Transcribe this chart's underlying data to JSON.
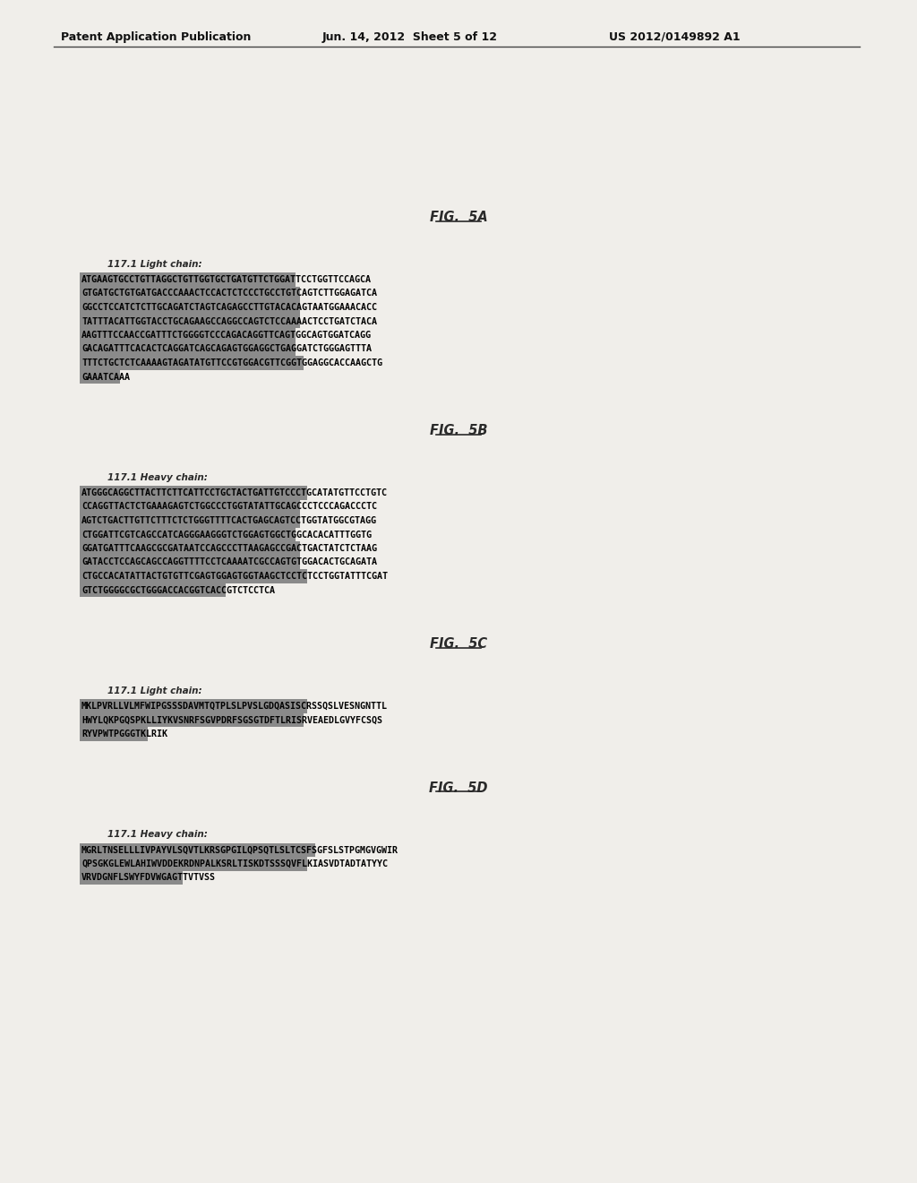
{
  "bg_color": "#f0eeea",
  "page_bg": "#f0eeea",
  "header_left": "Patent Application Publication",
  "header_center": "Jun. 14, 2012  Sheet 5 of 12",
  "header_right": "US 2012/0149892 A1",
  "fig5a_title": "FIG.  5A",
  "fig5a_label": "117.1 Light chain:",
  "fig5a_seq": [
    "ATGAAGTGCCTGTTAGGCTGTTGGTGCTGATGTTCTGGATTCCTGGTTCCAGCA",
    "GTGATGCTGTGATGACCCAAACTCCACTCTCCCTGCCTGTCAGTCTTGGAGATCA",
    "GGCCTCCATCTCTTGCAGATCTAGTCAGAGCCTTGTACACAGTAATGGAAACACC",
    "TATTTACATTGGTACCTGCAGAAGCCAGGCCAGTCTCCAAAACTCCTGATCTACA",
    "AAGTTTCCAACCGATTTCTGGGGTCCCAGACAGGTTCAGTGGCAGTGGATCAGG",
    "GACAGATTTCACACTCAGGATCAGCAGAGTGGAGGCTGAGGATCTGGGAGTTTA",
    "TTTCTGCTCTCAAAAGTAGATATGTTCCGTGGACGTTCGGTGGAGGCACCAAGCTG",
    "GAAATCAAA"
  ],
  "fig5b_title": "FIG.  5B",
  "fig5b_label": "117.1 Heavy chain:",
  "fig5b_seq": [
    "ATGGGCAGGCTTACTTCTTCATTCCTGCTACTGATTGTCCCTGCATATGTTCCTGTC",
    "CCAGGTTACTCTGAAAGAGTCTGGCCCTGGTATATTGCAGCCCTCCCAGACCCTC",
    "AGTCTGACTTGTTCTTTCTCTGGGTTTTCACTGAGCAGTCCTGGTATGGCGTAGG",
    "CTGGATTCGTCAGCCATCAGGGAAGGGTCTGGAGTGGCTGGCACACATTTGGTG",
    "GGATGATTTCAAGCGCGATAATCCAGCCCTTAAGAGCCGACTGACTATCTCTAAG",
    "GATACCTCCAGCAGCCAGGTTTTCCTCAAAATCGCCAGTGTGGACACTGCAGATA",
    "CTGCCACATATTACTGTGTTCGAGTGGAGTGGTAAGCTCCTCTCCTGGTATTTCGAT",
    "GTCTGGGGCGCTGGGACCACGGTCACCGTCTCCTCA"
  ],
  "fig5c_title": "FIG.  5C",
  "fig5c_label": "117.1 Light chain:",
  "fig5c_seq": [
    "MKLPVRLLVLMFWIPGSSSDAVMTQTPLSLPVSLGDQASISCRSSQSLVESNGNTTL",
    "HWYLQKPGQSPKLLIYKVSNRFSGVPDRFSGSGTDFTLRISRVEAEDLGVYFCSQS",
    "RYVPWTPGGGTKLRIK"
  ],
  "fig5d_title": "FIG.  5D",
  "fig5d_label": "117.1 Heavy chain:",
  "fig5d_seq": [
    "MGRLTNSELLLIVPAYVLSQVTLKRSGPGILQPSQTLSLTCSFSGFSLSTPGMGVGWIR",
    "QPSGKGLEWLAHIWVDDEKRDNPALKSRLTISKDTSSSQVFLKIASVDTADTATYYC",
    "VRVDGNFLSWYFDVWGAGTTVTVSS"
  ],
  "seq_bg_color": "#8a8a8a",
  "seq_text_color": "#000000",
  "title_color": "#2a2a2a",
  "label_color": "#2a2a2a"
}
